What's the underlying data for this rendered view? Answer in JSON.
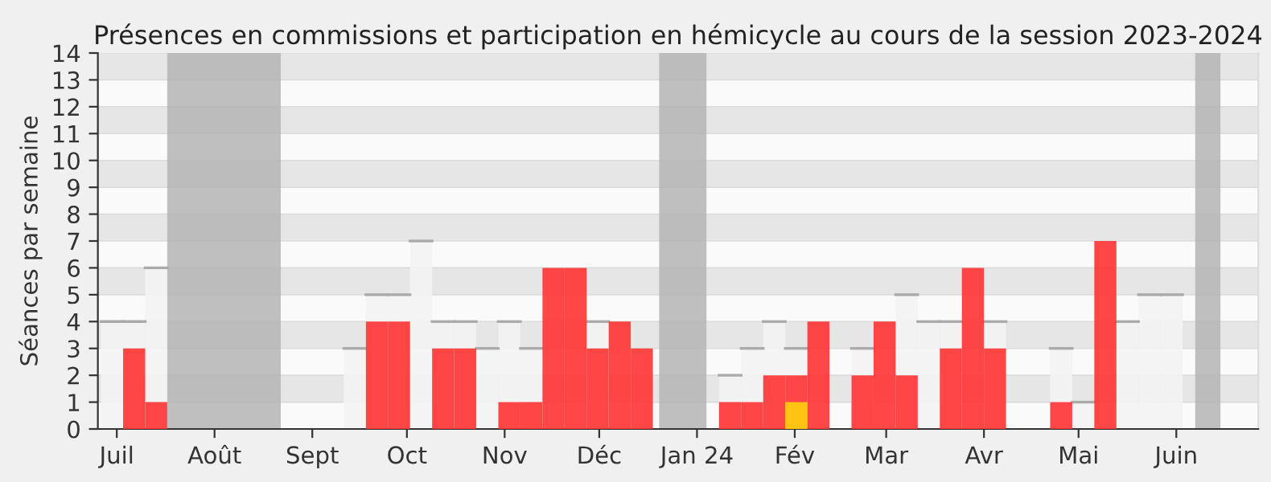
{
  "chart_data": {
    "type": "bar",
    "title": "Présences en commissions et participation en hémicycle au cours de la session 2023-2024",
    "ylabel": "Séances par semaine",
    "series": [
      {
        "color": "#f3f3f3",
        "x": [
          "2023-06-26",
          "2023-07-03",
          "2023-07-10",
          "2023-09-11",
          "2023-09-18",
          "2023-09-25",
          "2023-10-02",
          "2023-10-09",
          "2023-10-16",
          "2023-10-23",
          "2023-10-30",
          "2023-11-06",
          "2023-11-13",
          "2023-11-27",
          "2024-01-08",
          "2024-01-15",
          "2024-01-22",
          "2024-01-29",
          "2024-02-19",
          "2024-03-04",
          "2024-03-11",
          "2024-03-18",
          "2024-04-01",
          "2024-04-22",
          "2024-04-29",
          "2024-05-06",
          "2024-05-13",
          "2024-05-20",
          "2024-05-27"
        ],
        "values": [
          4,
          4,
          6,
          3,
          5,
          5,
          7,
          4,
          4,
          3,
          4,
          3,
          null,
          4,
          2,
          3,
          4,
          3,
          3,
          5,
          4,
          4,
          4,
          3,
          1,
          null,
          4,
          5,
          5
        ]
      },
      {
        "color": "#ff3333",
        "x": [
          "2023-07-03",
          "2023-07-10",
          "2023-09-18",
          "2023-09-25",
          "2023-10-09",
          "2023-10-16",
          "2023-10-30",
          "2023-11-06",
          "2023-11-13",
          "2023-11-20",
          "2023-11-27",
          "2023-12-04",
          "2023-12-11",
          "2024-01-08",
          "2024-01-15",
          "2024-01-22",
          "2024-01-29",
          "2024-02-05",
          "2024-02-19",
          "2024-02-26",
          "2024-03-04",
          "2024-03-18",
          "2024-03-25",
          "2024-04-01",
          "2024-04-22",
          "2024-05-06"
        ],
        "values": [
          3,
          1,
          4,
          4,
          3,
          3,
          1,
          1,
          6,
          6,
          3,
          4,
          3,
          1,
          1,
          2,
          2,
          4,
          2,
          4,
          2,
          3,
          6,
          3,
          1,
          7
        ]
      },
      {
        "color": "#ffd10d",
        "x": [
          "2024-01-29"
        ],
        "values": [
          1
        ]
      }
    ],
    "bands": [
      {
        "axis": "x",
        "from": "2023-07-17",
        "to": "2023-08-22",
        "color": "#b4b4b4"
      },
      {
        "axis": "x",
        "from": "2023-12-20",
        "to": "2024-01-04",
        "color": "#b4b4b4"
      },
      {
        "axis": "x",
        "from": "2024-06-07",
        "to": "2024-06-15",
        "color": "#b4b4b4"
      }
    ],
    "xlim": [
      "2023-06-25",
      "2024-06-27"
    ],
    "xticks": [
      {
        "value": "2023-07-01",
        "label": "Juil"
      },
      {
        "value": "2023-08-01",
        "label": "Août"
      },
      {
        "value": "2023-09-01",
        "label": "Sept"
      },
      {
        "value": "2023-10-01",
        "label": "Oct"
      },
      {
        "value": "2023-11-01",
        "label": "Nov"
      },
      {
        "value": "2023-12-01",
        "label": "Déc"
      },
      {
        "value": "2024-01-01",
        "label": "Jan 24"
      },
      {
        "value": "2024-02-01",
        "label": "Fév"
      },
      {
        "value": "2024-03-01",
        "label": "Mar"
      },
      {
        "value": "2024-04-01",
        "label": "Avr"
      },
      {
        "value": "2024-05-01",
        "label": "Mai"
      },
      {
        "value": "2024-06-01",
        "label": "Juin"
      }
    ],
    "ylim": [
      0,
      14
    ],
    "yticks": [
      0,
      1,
      2,
      3,
      4,
      5,
      6,
      7,
      8,
      9,
      10,
      11,
      12,
      13,
      14
    ],
    "grid": "y",
    "legend": false
  }
}
